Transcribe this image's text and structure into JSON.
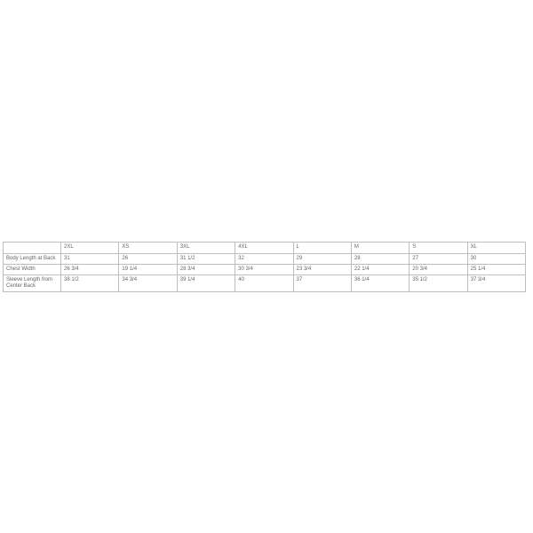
{
  "table": {
    "columns": [
      "2XL",
      "XS",
      "3XL",
      "4XL",
      "L",
      "M",
      "S",
      "XL"
    ],
    "rows": [
      {
        "label": "Body Length at Back",
        "values": [
          "31",
          "26",
          "31 1/2",
          "32",
          "29",
          "28",
          "27",
          "30"
        ]
      },
      {
        "label": "Chest Width",
        "values": [
          "26 3/4",
          "19 1/4",
          "28 3/4",
          "30 3/4",
          "23 3/4",
          "22 1/4",
          "20 3/4",
          "25 1/4"
        ]
      },
      {
        "label": "Sleeve Length from Center Back",
        "values": [
          "38 1/2",
          "34 3/4",
          "39 1/4",
          "40",
          "37",
          "36 1/4",
          "35 1/2",
          "37 3/4"
        ]
      }
    ]
  }
}
